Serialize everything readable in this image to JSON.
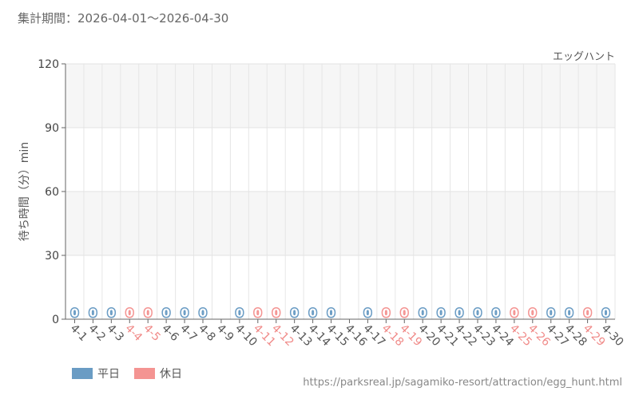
{
  "header": {
    "period": "集計期間：2026-04-01～2026-04-30"
  },
  "footer": {
    "url": "https://parksreal.jp/sagamiko-resort/attraction/egg_hunt.html"
  },
  "colors": {
    "weekday": "#6a9cc4",
    "holiday": "#f49492",
    "label_weekday": "#555555",
    "label_holiday": "#f08a88"
  },
  "chart_data": {
    "type": "bar",
    "title": "",
    "subtitle": "エッグハント",
    "ylabel": "待ち時間（分）min",
    "xlabel": "",
    "ylim": [
      0,
      120
    ],
    "yticks": [
      0,
      30,
      60,
      90,
      120
    ],
    "grid": true,
    "legend": {
      "position": "bottom-left",
      "entries": [
        {
          "key": "weekday",
          "label": "平日"
        },
        {
          "key": "holiday",
          "label": "休日"
        }
      ]
    },
    "categories": [
      "4-1",
      "4-2",
      "4-3",
      "4-4",
      "4-5",
      "4-6",
      "4-7",
      "4-8",
      "4-9",
      "4-10",
      "4-11",
      "4-12",
      "4-13",
      "4-14",
      "4-15",
      "4-16",
      "4-17",
      "4-18",
      "4-19",
      "4-20",
      "4-21",
      "4-22",
      "4-23",
      "4-24",
      "4-25",
      "4-26",
      "4-27",
      "4-28",
      "4-29",
      "4-30"
    ],
    "day_type": [
      "weekday",
      "weekday",
      "weekday",
      "holiday",
      "holiday",
      "weekday",
      "weekday",
      "weekday",
      "weekday",
      "weekday",
      "holiday",
      "holiday",
      "weekday",
      "weekday",
      "weekday",
      "weekday",
      "weekday",
      "holiday",
      "holiday",
      "weekday",
      "weekday",
      "weekday",
      "weekday",
      "weekday",
      "holiday",
      "holiday",
      "weekday",
      "weekday",
      "holiday",
      "weekday"
    ],
    "values": [
      0,
      0,
      0,
      0,
      0,
      0,
      0,
      0,
      null,
      0,
      0,
      0,
      0,
      0,
      0,
      null,
      0,
      0,
      0,
      0,
      0,
      0,
      0,
      0,
      0,
      0,
      0,
      0,
      0,
      0
    ],
    "data_labels": [
      "0",
      "0",
      "0",
      "0",
      "0",
      "0",
      "0",
      "0",
      "",
      "0",
      "0",
      "0",
      "0",
      "0",
      "0",
      "",
      "0",
      "0",
      "0",
      "0",
      "0",
      "0",
      "0",
      "0",
      "0",
      "0",
      "0",
      "0",
      "0",
      "0"
    ]
  }
}
